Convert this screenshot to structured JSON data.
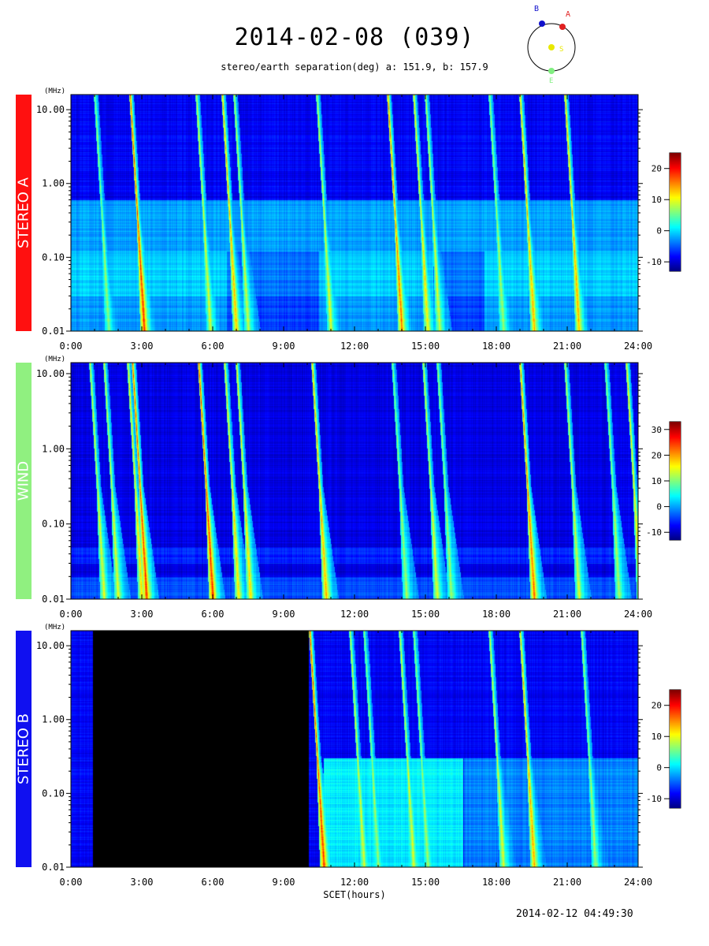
{
  "header": {
    "title": "2014-02-08 (039)",
    "subtitle": "stereo/earth separation(deg) a: 151.9, b: 157.9"
  },
  "orbit_diagram": {
    "labels": {
      "a": "A",
      "b": "B",
      "sun": "S",
      "earth": "E"
    },
    "colors": {
      "a": "#e02020",
      "b": "#1010cc",
      "sun": "#e8e800",
      "earth": "#80ee80"
    }
  },
  "footer": {
    "timestamp": "2014-02-12 04:49:30"
  },
  "xaxis_label": "SCET(hours)",
  "chart_data": [
    {
      "type": "heatmap",
      "instrument": "STEREO A",
      "band_color": "#ff1010",
      "xlabel": "",
      "ylabel": "(MHz)",
      "y_scale": "log",
      "ylim": [
        0.01,
        16
      ],
      "xlim": [
        0,
        24
      ],
      "x_ticks": [
        "0:00",
        "3:00",
        "6:00",
        "9:00",
        "12:00",
        "15:00",
        "18:00",
        "21:00",
        "24:00"
      ],
      "y_ticks": [
        "10.00",
        "1.00",
        "0.10",
        "0.01"
      ],
      "colorbar": {
        "ticks": [
          20,
          10,
          0,
          -10
        ],
        "range": [
          -13,
          25
        ]
      },
      "data_gap": null,
      "bursts": [
        {
          "t": 1.0,
          "i": 0.5
        },
        {
          "t": 2.5,
          "i": 1.0
        },
        {
          "t": 5.3,
          "i": 0.6
        },
        {
          "t": 6.4,
          "i": 0.8
        },
        {
          "t": 6.9,
          "i": 0.6
        },
        {
          "t": 10.4,
          "i": 0.6
        },
        {
          "t": 13.4,
          "i": 0.9
        },
        {
          "t": 14.5,
          "i": 0.7
        },
        {
          "t": 15.0,
          "i": 0.6
        },
        {
          "t": 17.7,
          "i": 0.5
        },
        {
          "t": 19.0,
          "i": 0.8
        },
        {
          "t": 20.9,
          "i": 0.8
        }
      ]
    },
    {
      "type": "heatmap",
      "instrument": "WIND",
      "band_color": "#90f080",
      "xlabel": "",
      "ylabel": "(MHz)",
      "y_scale": "log",
      "ylim": [
        0.01,
        14
      ],
      "xlim": [
        0,
        24
      ],
      "x_ticks": [
        "0:00",
        "3:00",
        "6:00",
        "9:00",
        "12:00",
        "15:00",
        "18:00",
        "21:00",
        "24:00"
      ],
      "y_ticks": [
        "10.00",
        "1.00",
        "0.10",
        "0.01"
      ],
      "colorbar": {
        "ticks": [
          30,
          20,
          10,
          0,
          -10
        ],
        "range": [
          -13,
          33
        ]
      },
      "data_gap": null,
      "bursts": [
        {
          "t": 0.8,
          "i": 0.6
        },
        {
          "t": 1.4,
          "i": 0.6
        },
        {
          "t": 2.4,
          "i": 0.7
        },
        {
          "t": 2.6,
          "i": 1.0
        },
        {
          "t": 5.4,
          "i": 1.0
        },
        {
          "t": 6.5,
          "i": 0.7
        },
        {
          "t": 7.0,
          "i": 0.7
        },
        {
          "t": 10.2,
          "i": 0.8
        },
        {
          "t": 13.6,
          "i": 0.5
        },
        {
          "t": 14.9,
          "i": 0.6
        },
        {
          "t": 15.5,
          "i": 0.5
        },
        {
          "t": 19.0,
          "i": 0.9
        },
        {
          "t": 20.9,
          "i": 0.6
        },
        {
          "t": 22.6,
          "i": 0.5
        },
        {
          "t": 23.5,
          "i": 0.7
        }
      ]
    },
    {
      "type": "heatmap",
      "instrument": "STEREO B",
      "band_color": "#1010f0",
      "xlabel": "SCET(hours)",
      "ylabel": "(MHz)",
      "y_scale": "log",
      "ylim": [
        0.01,
        16
      ],
      "xlim": [
        0,
        24
      ],
      "x_ticks": [
        "0:00",
        "3:00",
        "6:00",
        "9:00",
        "12:00",
        "15:00",
        "18:00",
        "21:00",
        "24:00"
      ],
      "y_ticks": [
        "10.00",
        "1.00",
        "0.10",
        "0.01"
      ],
      "colorbar": {
        "ticks": [
          20,
          10,
          0,
          -10
        ],
        "range": [
          -13,
          25
        ]
      },
      "data_gap": [
        0.9,
        10.05
      ],
      "bursts": [
        {
          "t": 10.1,
          "i": 1.0
        },
        {
          "t": 11.8,
          "i": 0.6
        },
        {
          "t": 12.4,
          "i": 0.5
        },
        {
          "t": 13.9,
          "i": 0.6
        },
        {
          "t": 14.5,
          "i": 0.5
        },
        {
          "t": 17.7,
          "i": 0.6
        },
        {
          "t": 19.0,
          "i": 0.8
        },
        {
          "t": 21.6,
          "i": 0.5
        }
      ]
    }
  ]
}
